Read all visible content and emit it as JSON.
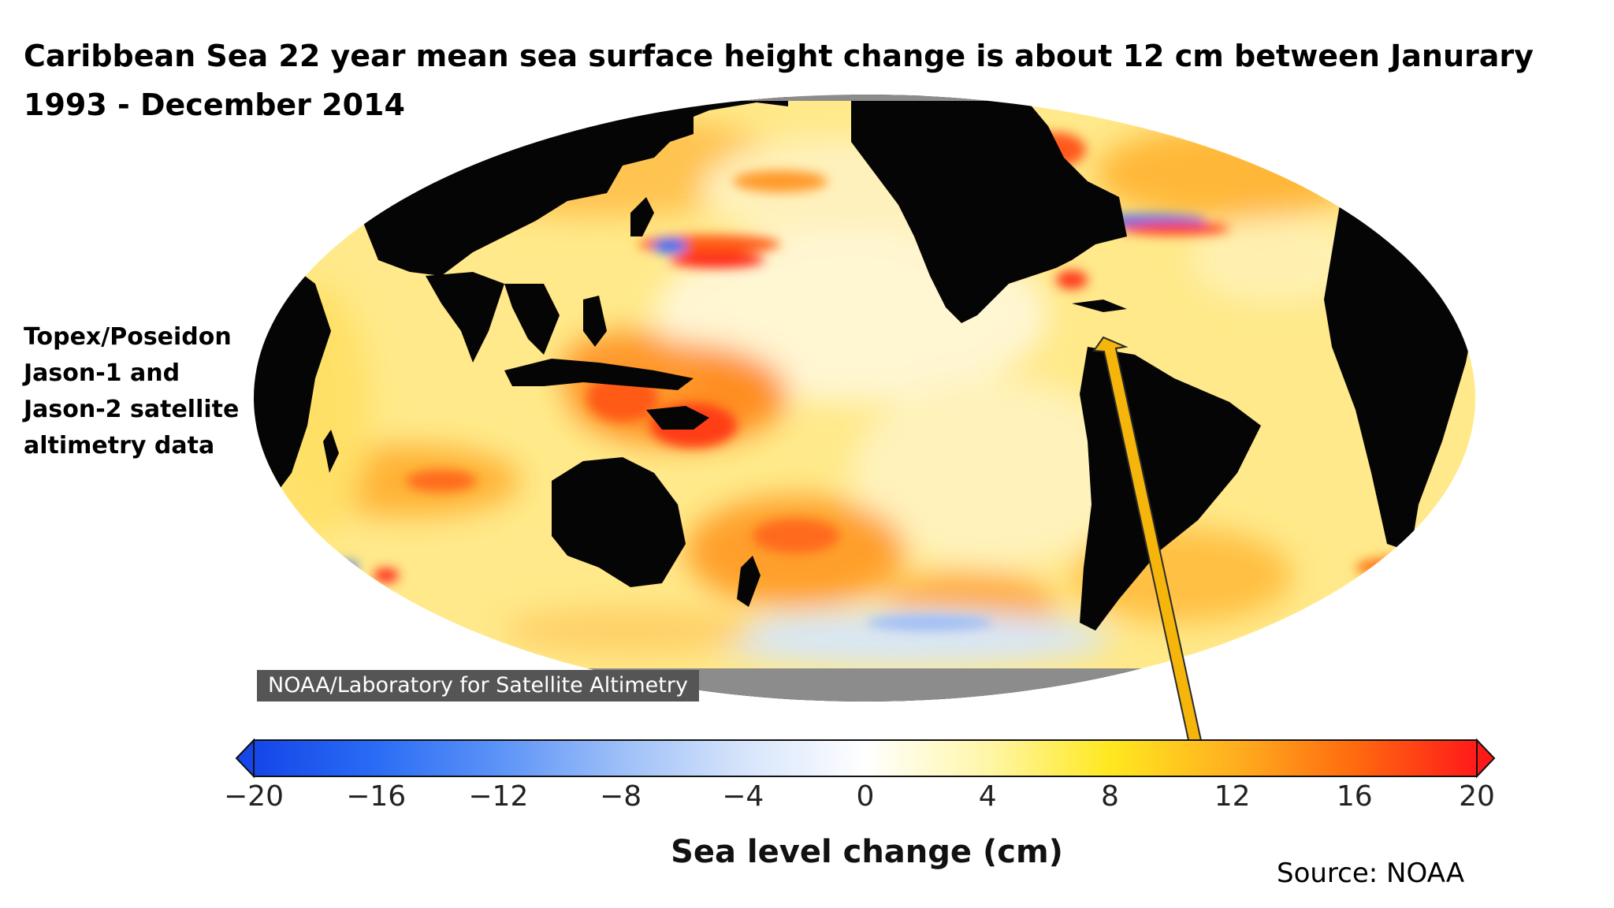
{
  "title": "Caribbean Sea 22 year mean sea surface height change is about 12 cm between Janurary 1993 - December 2014",
  "side_note": [
    "Topex/Poseidon",
    "Jason-1 and",
    "Jason-2 satellite",
    "altimetry data"
  ],
  "map": {
    "credit": "NOAA/Laboratory for Satellite Altimetry",
    "colors": {
      "land": "#050505",
      "ice": "#8c8c8c",
      "ocean_base": "#ffe98a"
    },
    "annotation": {
      "target": "Caribbean Sea",
      "arrow_color": "#f5b50a",
      "points_to_value_cm": 12
    }
  },
  "colorbar": {
    "label": "Sea level change (cm)",
    "ticks": [
      "−20",
      "−16",
      "−12",
      "−8",
      "−4",
      "0",
      "4",
      "8",
      "12",
      "16",
      "20"
    ],
    "range": [
      -20,
      20
    ],
    "stops": [
      {
        "value": -20,
        "color": "#1546e8"
      },
      {
        "value": -16,
        "color": "#2a6cf5"
      },
      {
        "value": -12,
        "color": "#5c93f7"
      },
      {
        "value": -8,
        "color": "#9dbff8"
      },
      {
        "value": -4,
        "color": "#d6e4fb"
      },
      {
        "value": 0,
        "color": "#ffffff"
      },
      {
        "value": 4,
        "color": "#fff6a8"
      },
      {
        "value": 8,
        "color": "#ffe81f"
      },
      {
        "value": 12,
        "color": "#ffb01f"
      },
      {
        "value": 16,
        "color": "#ff6a0f"
      },
      {
        "value": 20,
        "color": "#ff1a1a"
      }
    ]
  },
  "source": "Source: NOAA"
}
